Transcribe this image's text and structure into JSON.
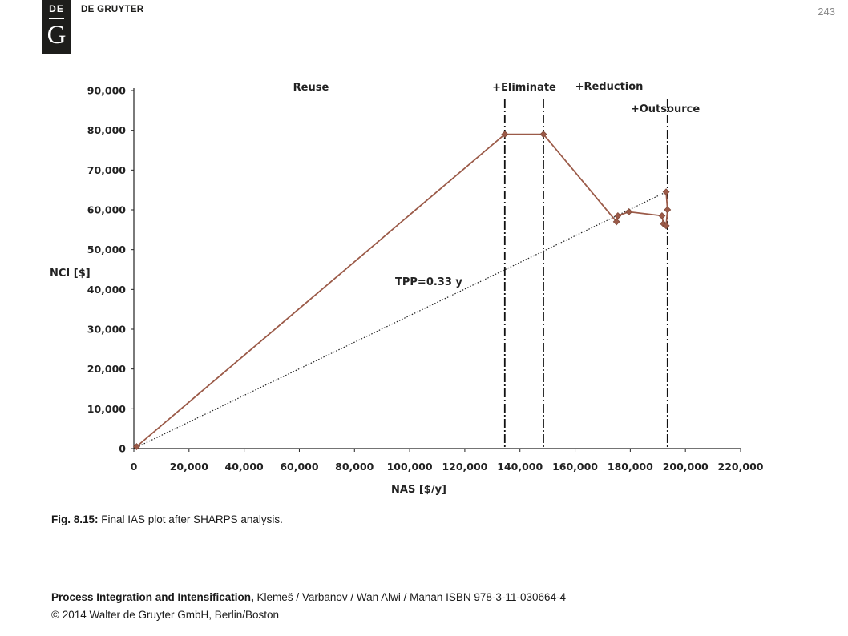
{
  "header": {
    "logo_top": "DE",
    "logo_bottom": "G",
    "brand": "DE GRUYTER",
    "page_number": "243"
  },
  "caption": {
    "label": "Fig. 8.15:",
    "text": " Final IAS plot after SHARPS analysis."
  },
  "footer": {
    "book_title": "Process Integration and Intensification,",
    "book_details": " Klemeš / Varbanov / Wan Alwi / Manan ISBN 978-3-11-030664-4",
    "copyright": "© 2014 Walter de Gruyter GmbH, Berlin/Boston"
  },
  "chart_data": {
    "type": "line",
    "xlabel": "NAS [$/y]",
    "ylabel": "NCI [$]",
    "xlim": [
      0,
      220000
    ],
    "ylim": [
      0,
      90000
    ],
    "x_ticks": [
      0,
      20000,
      40000,
      60000,
      80000,
      100000,
      120000,
      140000,
      160000,
      180000,
      200000,
      220000
    ],
    "x_tick_labels": [
      "0",
      "20,000",
      "40,000",
      "60,000",
      "80,000",
      "100,000",
      "120,000",
      "140,000",
      "160,000",
      "180,000",
      "200,000",
      "220,000"
    ],
    "y_ticks": [
      0,
      10000,
      20000,
      30000,
      40000,
      50000,
      60000,
      70000,
      80000,
      90000
    ],
    "y_tick_labels": [
      "0",
      "10,000",
      "20,000",
      "30,000",
      "40,000",
      "50,000",
      "60,000",
      "70,000",
      "80,000",
      "90,000"
    ],
    "grid": false,
    "series": [
      {
        "color": "#9b5a48",
        "points": [
          [
            1000,
            500
          ],
          [
            134500,
            79000
          ],
          [
            148500,
            79000
          ],
          [
            175000,
            57000
          ],
          [
            175500,
            58500
          ],
          [
            179500,
            59500
          ],
          [
            191500,
            58500
          ],
          [
            192000,
            56500
          ],
          [
            193000,
            56000
          ],
          [
            193500,
            60000
          ],
          [
            193000,
            64500
          ]
        ]
      }
    ],
    "reference_line": {
      "label": "TPP=0.33 y",
      "points": [
        [
          0,
          0
        ],
        [
          193000,
          64500
        ]
      ],
      "style": "dotted"
    },
    "regions": [
      {
        "label": "Reuse",
        "x_end": 134500
      },
      {
        "label": "+Eliminate",
        "x_end": 148500
      },
      {
        "label": "+Reduction",
        "x_end": 193500
      },
      {
        "label": "+Outsource",
        "x_end": 193500
      }
    ],
    "vertical_lines": [
      134500,
      148500,
      193500
    ]
  }
}
